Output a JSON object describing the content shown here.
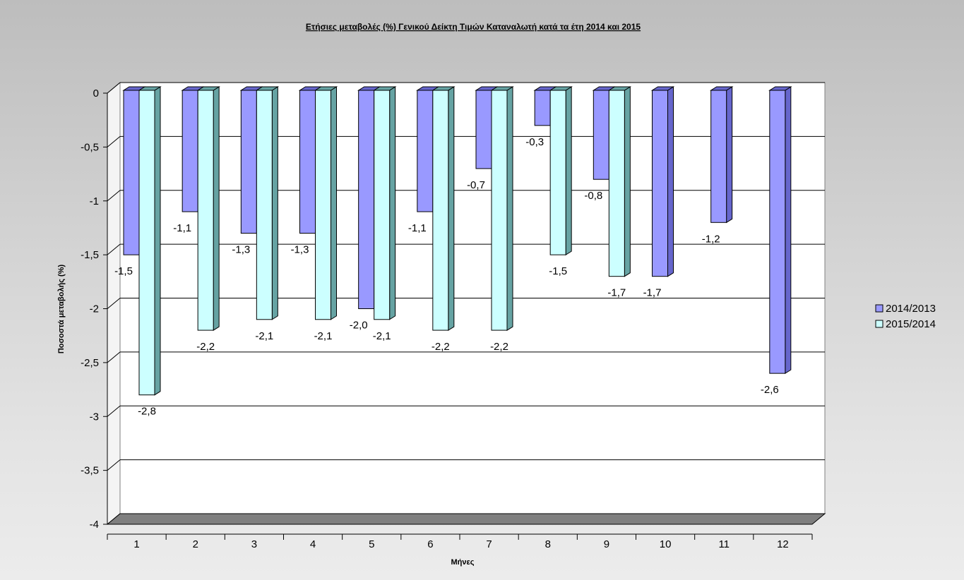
{
  "chart_data": {
    "type": "bar",
    "title": "Ετήσιες μεταβολές (%) Γενικού Δείκτη Τιμών Καταναλωτή κατά τα έτη 2014 και 2015",
    "xlabel": "Μήνες",
    "ylabel": "Ποσοστά μεταβολής (%)",
    "ylim": [
      -4,
      0
    ],
    "yticks": [
      "0",
      "-0,5",
      "-1",
      "-1,5",
      "-2",
      "-2,5",
      "-3",
      "-3,5",
      "-4"
    ],
    "ytick_values": [
      0,
      -0.5,
      -1,
      -1.5,
      -2,
      -2.5,
      -3,
      -3.5,
      -4
    ],
    "categories": [
      "1",
      "2",
      "3",
      "4",
      "5",
      "6",
      "7",
      "8",
      "9",
      "10",
      "11",
      "12"
    ],
    "grid": true,
    "legend_position": "right",
    "series": [
      {
        "name": "2014/2013",
        "color": "#9999ff",
        "side_color": "#6666cc",
        "values": [
          -1.5,
          -1.1,
          -1.3,
          -1.3,
          -2.0,
          -1.1,
          -0.7,
          -0.3,
          -0.8,
          -1.7,
          -1.2,
          -2.6
        ],
        "labels": [
          "-1,5",
          "-1,1",
          "-1,3",
          "-1,3",
          "-2,0",
          "-1,1",
          "-0,7",
          "-0,3",
          "-0,8",
          "-1,7",
          "-1,2",
          "-2,6"
        ]
      },
      {
        "name": "2015/2014",
        "color": "#ccffff",
        "side_color": "#66a3a3",
        "values": [
          -2.8,
          -2.2,
          -2.1,
          -2.1,
          -2.1,
          -2.2,
          -2.2,
          -1.5,
          -1.7,
          null,
          null,
          null
        ],
        "labels": [
          "-2,8",
          "-2,2",
          "-2,1",
          "-2,1",
          "-2,1",
          "-2,2",
          "-2,2",
          "-1,5",
          "-1,7",
          null,
          null,
          null
        ]
      }
    ]
  }
}
